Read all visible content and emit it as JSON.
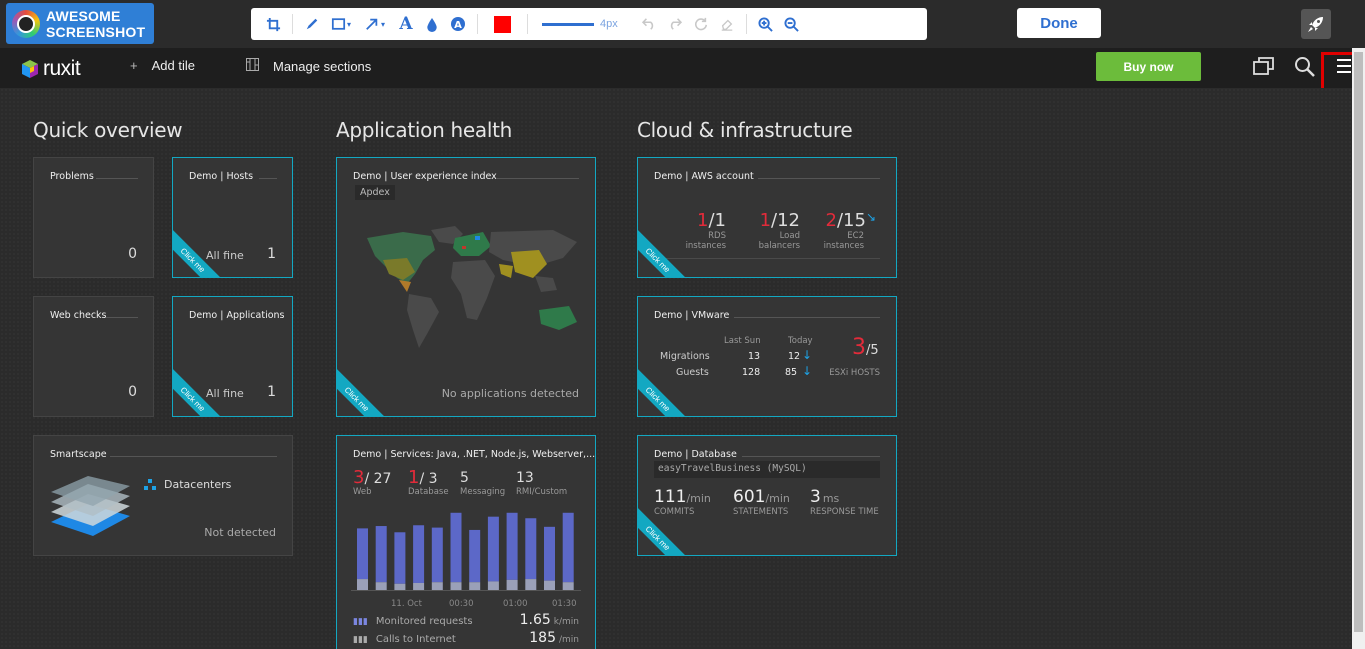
{
  "screenshot_tool": {
    "logo_line1": "AWESOME",
    "logo_line2": "SCREENSHOT",
    "stroke_size": "4px",
    "done_label": "Done",
    "accent": "#2f6fd0",
    "color": "#ff0000",
    "tools": [
      "crop-icon",
      "pen-icon",
      "rectangle-icon",
      "arrow-icon",
      "text-icon",
      "blur-icon",
      "highlight-icon",
      "color-icon",
      "undo-icon",
      "redo-icon",
      "rotate-icon",
      "eraser-icon",
      "zoom-in-icon",
      "zoom-out-icon"
    ]
  },
  "header": {
    "logo_text": "ruxit",
    "add_tile": "Add tile",
    "manage_sections": "Manage sections",
    "buy_now": "Buy now",
    "buy_color": "#6cbc3b"
  },
  "sections": {
    "quick": "Quick overview",
    "app": "Application health",
    "cloud": "Cloud & infrastructure"
  },
  "ribbon": "Click me",
  "quick": {
    "problems": {
      "title": "Problems",
      "value": "0"
    },
    "hosts": {
      "title": "Demo  |  Hosts",
      "status": "All fine",
      "value": "1"
    },
    "webchecks": {
      "title": "Web checks",
      "value": "0"
    },
    "apps": {
      "title": "Demo | Applications",
      "status": "All fine",
      "value": "1"
    },
    "smartscape": {
      "title": "Smartscape",
      "label": "Datacenters",
      "status": "Not detected"
    }
  },
  "app_health": {
    "ux": {
      "title": "Demo  |  User experience index",
      "badge": "Apdex",
      "status": "No applications detected"
    },
    "services": {
      "title": "Demo  |  Services: Java, .NET, Node.js, Webserver,...",
      "web_num": "3",
      "web_den": "/ 27",
      "web_label": "Web",
      "db_num": "1",
      "db_den": "/ 3",
      "db_label": "Database",
      "msg_num": "5",
      "msg_label": "Messaging",
      "rmi_num": "13",
      "rmi_label": "RMI/Custom",
      "x_ticks": [
        "11. Oct",
        "00:30",
        "01:00",
        "01:30"
      ],
      "monitored_label": "Monitored requests",
      "monitored_value": "1.65",
      "monitored_unit": "k/min",
      "calls_label": "Calls to Internet",
      "calls_value": "185",
      "calls_unit": "/min"
    }
  },
  "cloud": {
    "aws": {
      "title": "Demo  |  AWS account",
      "items": [
        {
          "num": "1",
          "den": "/1",
          "label1": "RDS",
          "label2": "instances"
        },
        {
          "num": "1",
          "den": "/12",
          "label1": "Load",
          "label2": "balancers"
        },
        {
          "num": "2",
          "den": "/15",
          "label1": "EC2",
          "label2": "instances"
        }
      ]
    },
    "vmware": {
      "title": "Demo  |  VMware",
      "col1": "Last Sun",
      "col2": "Today",
      "row1": {
        "label": "Migrations",
        "last": "13",
        "today": "12"
      },
      "row2": {
        "label": "Guests",
        "last": "128",
        "today": "85"
      },
      "hosts_num": "3",
      "hosts_den": "/5",
      "hosts_label": "ESXi HOSTS"
    },
    "db": {
      "title": "Demo  |  Database",
      "name": "easyTravelBusiness (MySQL)",
      "commits": "111",
      "commits_unit": "/min",
      "commits_label": "COMMITS",
      "statements": "601",
      "statements_unit": "/min",
      "statements_label": "STATEMENTS",
      "resp": "3",
      "resp_unit": "ms",
      "resp_label": "RESPONSE TIME"
    }
  },
  "bars": [
    {
      "total": 0.79,
      "low": 0.14
    },
    {
      "total": 0.82,
      "low": 0.1
    },
    {
      "total": 0.74,
      "low": 0.08
    },
    {
      "total": 0.83,
      "low": 0.09
    },
    {
      "total": 0.8,
      "low": 0.1
    },
    {
      "total": 0.99,
      "low": 0.1
    },
    {
      "total": 0.77,
      "low": 0.1
    },
    {
      "total": 0.94,
      "low": 0.11
    },
    {
      "total": 0.99,
      "low": 0.13
    },
    {
      "total": 0.92,
      "low": 0.14
    },
    {
      "total": 0.81,
      "low": 0.12
    },
    {
      "total": 0.99,
      "low": 0.1
    }
  ]
}
